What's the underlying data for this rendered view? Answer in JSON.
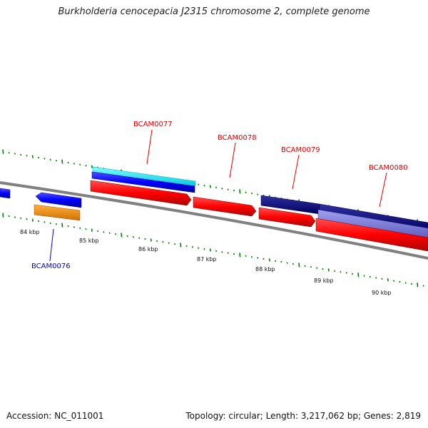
{
  "title": "Burkholderia cenocepacia J2315 chromosome 2, complete genome",
  "footer": {
    "accession": "Accession: NC_011001",
    "summary": "Topology: circular; Length: 3,217,062 bp; Genes: 2,819"
  },
  "ticks": [
    "84 kbp",
    "85 kbp",
    "86 kbp",
    "87 kbp",
    "88 kbp",
    "89 kbp",
    "90 kbp"
  ],
  "genes": {
    "forward": [
      "BCAM0077",
      "BCAM0078",
      "BCAM0079",
      "BCAM0080"
    ],
    "reverse": [
      "BCAM0076"
    ]
  },
  "colors": {
    "forward_cds": "#ff0000",
    "reverse_cds": "#0000ff",
    "dark_navy": "#000080",
    "cyan": "#00ffff",
    "orange": "#ff8c00",
    "lavender": "#8080e0",
    "backbone": "#808080",
    "tick": "#008000",
    "label_red": "#e00000",
    "label_blue": "#0000cc"
  }
}
